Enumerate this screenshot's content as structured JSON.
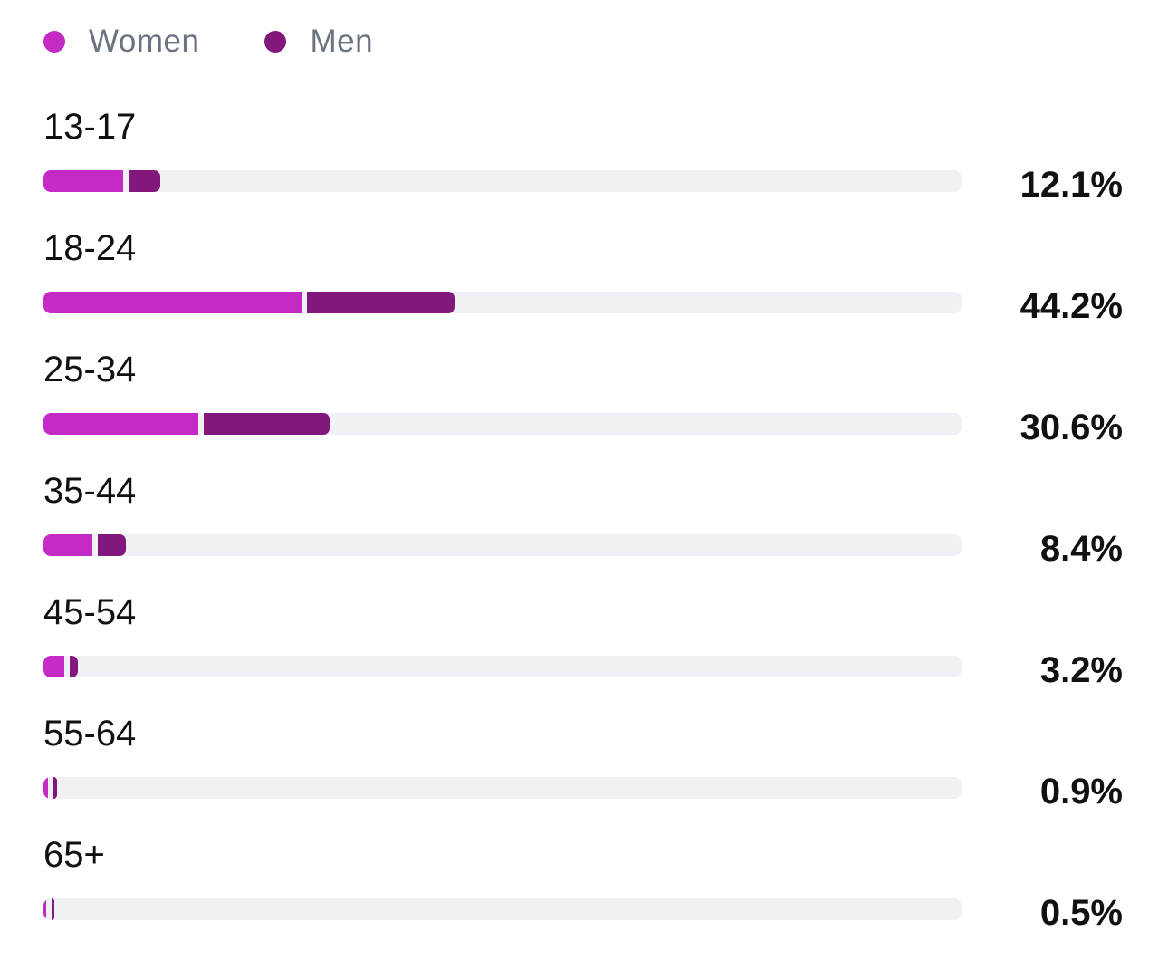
{
  "legend": {
    "women_label": "Women",
    "men_label": "Men"
  },
  "colors": {
    "women": "#c32bc4",
    "men": "#83187c",
    "track": "#f0f1f5"
  },
  "chart_data": {
    "type": "bar",
    "orientation": "horizontal",
    "stacked": true,
    "categories": [
      "13-17",
      "18-24",
      "25-34",
      "35-44",
      "45-54",
      "55-64",
      "65+"
    ],
    "totals_labels": [
      "12.1%",
      "44.2%",
      "30.6%",
      "8.4%",
      "3.2%",
      "0.9%",
      "0.5%"
    ],
    "totals": [
      12.1,
      44.2,
      30.6,
      8.4,
      3.2,
      0.9,
      0.5
    ],
    "series": [
      {
        "name": "Women",
        "values": [
          8.7,
          28.1,
          16.9,
          5.3,
          2.3,
          0.5,
          0.25
        ]
      },
      {
        "name": "Men",
        "values": [
          3.4,
          16.1,
          13.7,
          3.1,
          0.9,
          0.4,
          0.25
        ]
      }
    ],
    "xlim": [
      0,
      100
    ],
    "grid": false,
    "legend_position": "top-left"
  }
}
